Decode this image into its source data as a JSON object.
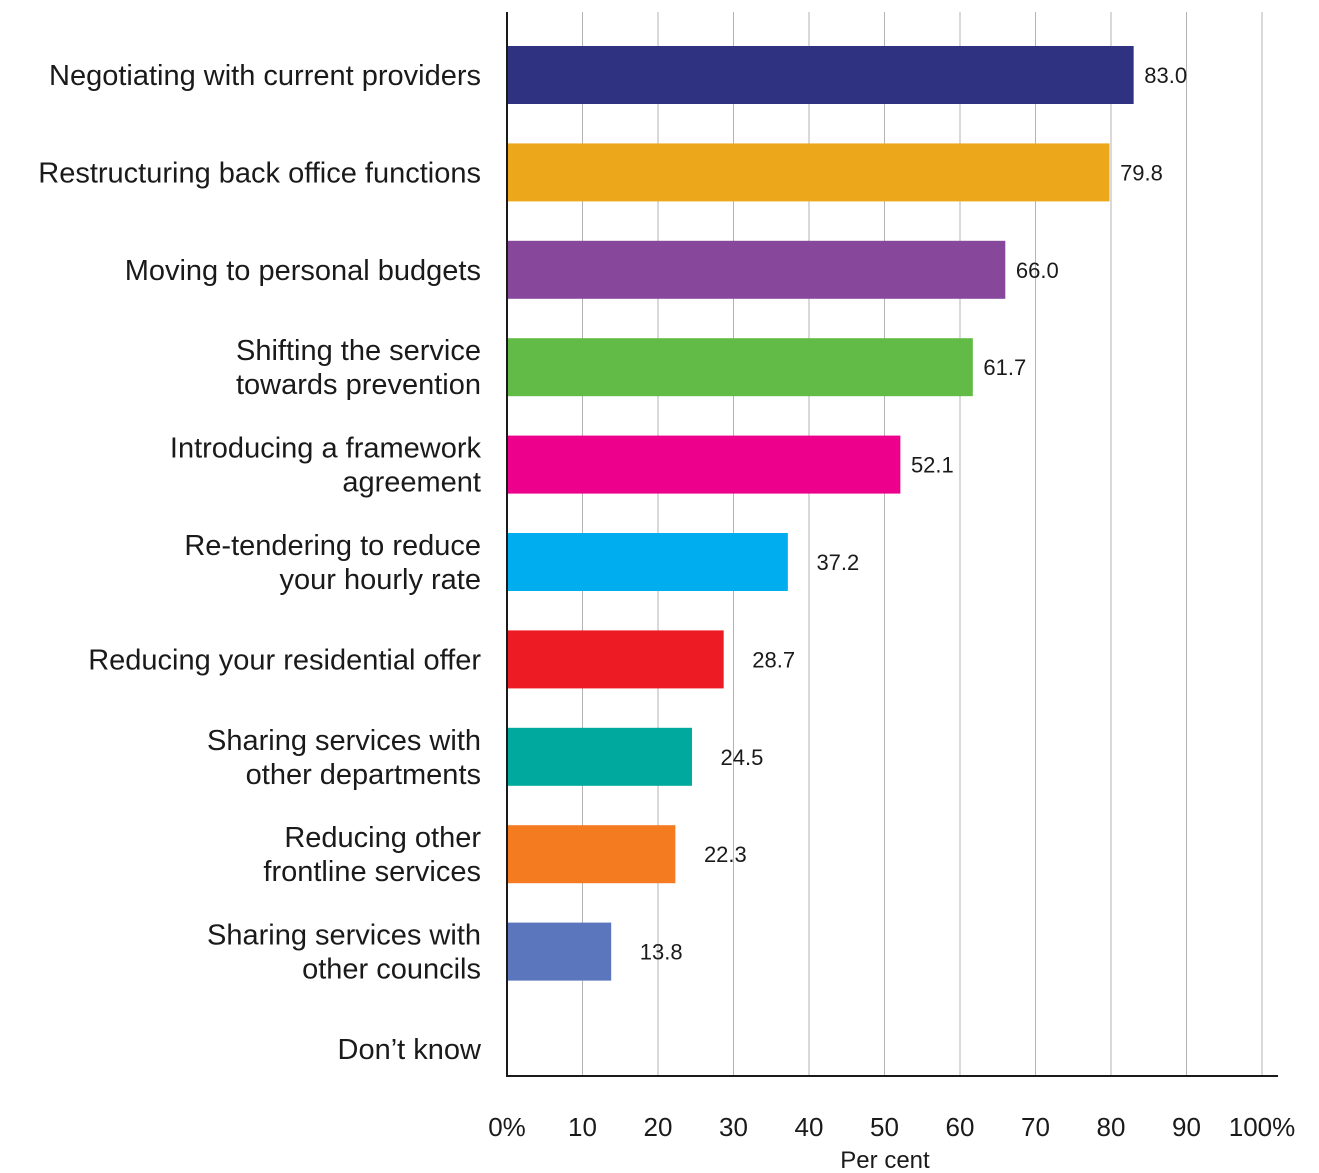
{
  "chart_data": {
    "type": "bar",
    "orientation": "horizontal",
    "categories": [
      [
        "Negotiating with current providers"
      ],
      [
        "Restructuring back office functions"
      ],
      [
        "Moving to personal budgets"
      ],
      [
        "Shifting the service",
        "towards prevention"
      ],
      [
        "Introducing a framework",
        "agreement"
      ],
      [
        "Re-tendering to reduce",
        "your hourly rate"
      ],
      [
        "Reducing your residential offer"
      ],
      [
        "Sharing services with",
        "other departments"
      ],
      [
        "Reducing other",
        "frontline services"
      ],
      [
        "Sharing services with",
        "other councils"
      ],
      [
        "Don’t know"
      ]
    ],
    "values": [
      83.0,
      79.8,
      66.0,
      61.7,
      52.1,
      37.2,
      28.7,
      24.5,
      22.3,
      13.8,
      null
    ],
    "value_labels": [
      "83.0",
      "79.8",
      "66.0",
      "61.7",
      "52.1",
      "37.2",
      "28.7",
      "24.5",
      "22.3",
      "13.8",
      ""
    ],
    "colors": [
      "#2e3280",
      "#eca81a",
      "#87489c",
      "#62bb46",
      "#ec008c",
      "#00aeef",
      "#ed1c24",
      "#00a99d",
      "#f47b20",
      "#5b76bc",
      "#ffffff"
    ],
    "xlim": [
      0,
      100
    ],
    "x_ticks": [
      "0%",
      "10",
      "20",
      "30",
      "40",
      "50",
      "60",
      "70",
      "80",
      "90",
      "100%"
    ],
    "xlabel": "Per cent",
    "grid": true,
    "title": ""
  }
}
